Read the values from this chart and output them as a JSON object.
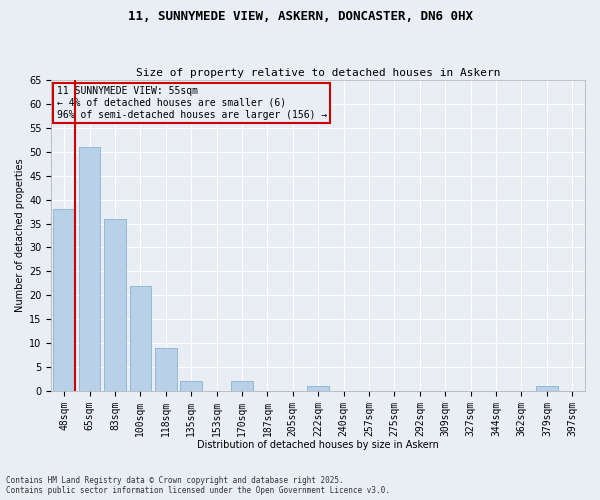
{
  "title1": "11, SUNNYMEDE VIEW, ASKERN, DONCASTER, DN6 0HX",
  "title2": "Size of property relative to detached houses in Askern",
  "xlabel": "Distribution of detached houses by size in Askern",
  "ylabel": "Number of detached properties",
  "categories": [
    "48sqm",
    "65sqm",
    "83sqm",
    "100sqm",
    "118sqm",
    "135sqm",
    "153sqm",
    "170sqm",
    "187sqm",
    "205sqm",
    "222sqm",
    "240sqm",
    "257sqm",
    "275sqm",
    "292sqm",
    "309sqm",
    "327sqm",
    "344sqm",
    "362sqm",
    "379sqm",
    "397sqm"
  ],
  "values": [
    38,
    51,
    36,
    22,
    9,
    2,
    0,
    2,
    0,
    0,
    1,
    0,
    0,
    0,
    0,
    0,
    0,
    0,
    0,
    1,
    0
  ],
  "bar_color": "#b8d0e8",
  "bar_edge_color": "#7aaac8",
  "highlight_color": "#cc0000",
  "annotation_text": "11 SUNNYMEDE VIEW: 55sqm\n← 4% of detached houses are smaller (6)\n96% of semi-detached houses are larger (156) →",
  "annotation_box_color": "#cc0000",
  "ylim": [
    0,
    65
  ],
  "yticks": [
    0,
    5,
    10,
    15,
    20,
    25,
    30,
    35,
    40,
    45,
    50,
    55,
    60,
    65
  ],
  "footer1": "Contains HM Land Registry data © Crown copyright and database right 2025.",
  "footer2": "Contains public sector information licensed under the Open Government Licence v3.0.",
  "bg_color": "#e8eef4",
  "grid_color": "#ffffff",
  "title_fontsize": 9,
  "subtitle_fontsize": 8,
  "axis_fontsize": 7,
  "tick_fontsize": 7,
  "bar_width": 0.85,
  "red_line_x": 0.42
}
